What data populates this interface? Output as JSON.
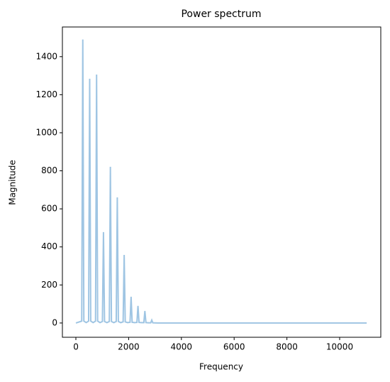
{
  "chart_data": {
    "type": "line",
    "title": "Power spectrum",
    "xlabel": "Frequency",
    "ylabel": "Magnitude",
    "x": [
      0,
      222,
      262,
      302,
      392,
      483,
      523,
      563,
      654,
      745,
      785,
      825,
      915,
      1006,
      1046,
      1086,
      1177,
      1268,
      1308,
      1348,
      1439,
      1530,
      1570,
      1610,
      1700,
      1791,
      1831,
      1871,
      1962,
      2053,
      2093,
      2133,
      2223,
      2314,
      2354,
      2394,
      2485,
      2576,
      2616,
      2656,
      2746,
      2837,
      2877,
      2917,
      3100,
      11025
    ],
    "series": [
      {
        "color": "#9fc5e3",
        "values": [
          0,
          10,
          1490,
          10,
          2,
          10,
          1284,
          10,
          2,
          10,
          1306,
          10,
          2,
          8,
          478,
          8,
          2,
          8,
          821,
          8,
          2,
          8,
          660,
          8,
          2,
          6,
          358,
          6,
          2,
          4,
          138,
          4,
          2,
          3,
          90,
          3,
          2,
          2,
          63,
          2,
          1,
          1,
          15,
          1,
          0,
          0
        ]
      }
    ],
    "xlim": [
      -511,
      11559
    ],
    "ylim": [
      -75,
      1556
    ],
    "xticks": [
      0,
      2000,
      4000,
      6000,
      8000,
      10000
    ],
    "yticks": [
      0,
      200,
      400,
      600,
      800,
      1000,
      1200,
      1400
    ]
  }
}
